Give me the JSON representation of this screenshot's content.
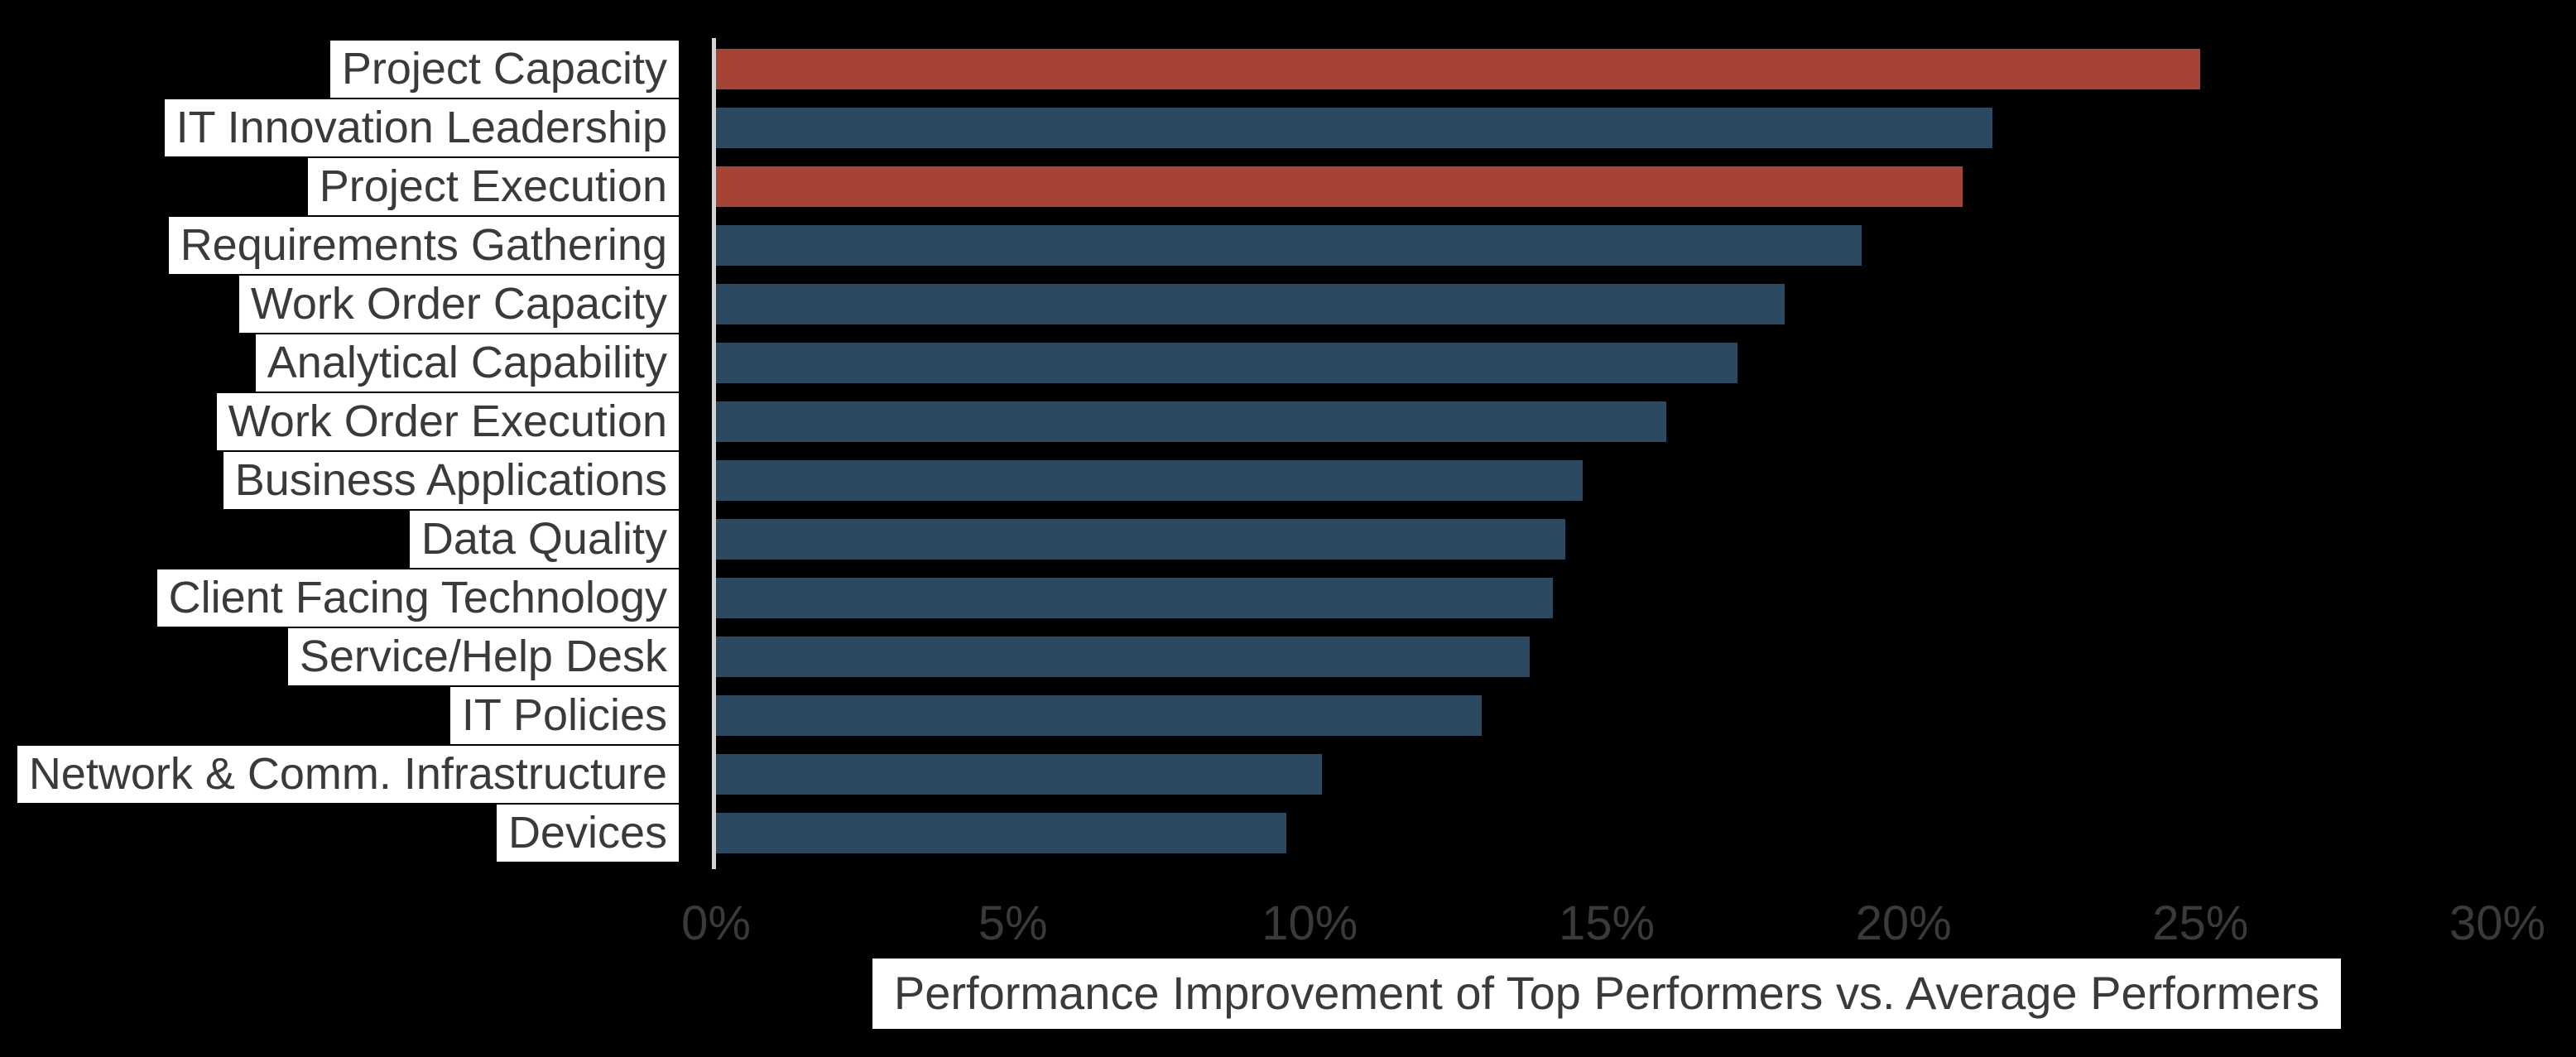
{
  "chart_data": {
    "type": "bar",
    "orientation": "horizontal",
    "title": "",
    "xlabel": "Performance Improvement of Top Performers vs. Average Performers",
    "xlim": [
      0,
      30
    ],
    "grid": false,
    "legend": false,
    "x_ticks": [
      {
        "label": "0%",
        "value": 0
      },
      {
        "label": "5%",
        "value": 5
      },
      {
        "label": "10%",
        "value": 10
      },
      {
        "label": "15%",
        "value": 15
      },
      {
        "label": "20%",
        "value": 20
      },
      {
        "label": "25%",
        "value": 25
      },
      {
        "label": "30%",
        "value": 30
      }
    ],
    "rows": [
      {
        "label": "Project Capacity",
        "value": 25.0,
        "highlight": true
      },
      {
        "label": "IT Innovation Leadership",
        "value": 21.5,
        "highlight": false
      },
      {
        "label": "Project Execution",
        "value": 21.0,
        "highlight": true
      },
      {
        "label": "Requirements Gathering",
        "value": 19.3,
        "highlight": false
      },
      {
        "label": "Work Order Capacity",
        "value": 18.0,
        "highlight": false
      },
      {
        "label": "Analytical Capability",
        "value": 17.2,
        "highlight": false
      },
      {
        "label": "Work Order Execution",
        "value": 16.0,
        "highlight": false
      },
      {
        "label": "Business Applications",
        "value": 14.6,
        "highlight": false
      },
      {
        "label": "Data Quality",
        "value": 14.3,
        "highlight": false
      },
      {
        "label": "Client Facing Technology",
        "value": 14.1,
        "highlight": false
      },
      {
        "label": "Service/Help Desk",
        "value": 13.7,
        "highlight": false
      },
      {
        "label": "IT Policies",
        "value": 12.9,
        "highlight": false
      },
      {
        "label": "Network & Comm. Infrastructure",
        "value": 10.2,
        "highlight": false
      },
      {
        "label": "Devices",
        "value": 9.6,
        "highlight": false
      }
    ],
    "colors": {
      "background": "#000000",
      "bar_normal": "#2B4A62",
      "bar_highlight": "#A54334",
      "axis_line": "#D3D3D3",
      "tick_text": "#3A3A3A",
      "label_text": "#3A3A3A",
      "label_bg": "#FFFFFF"
    }
  }
}
